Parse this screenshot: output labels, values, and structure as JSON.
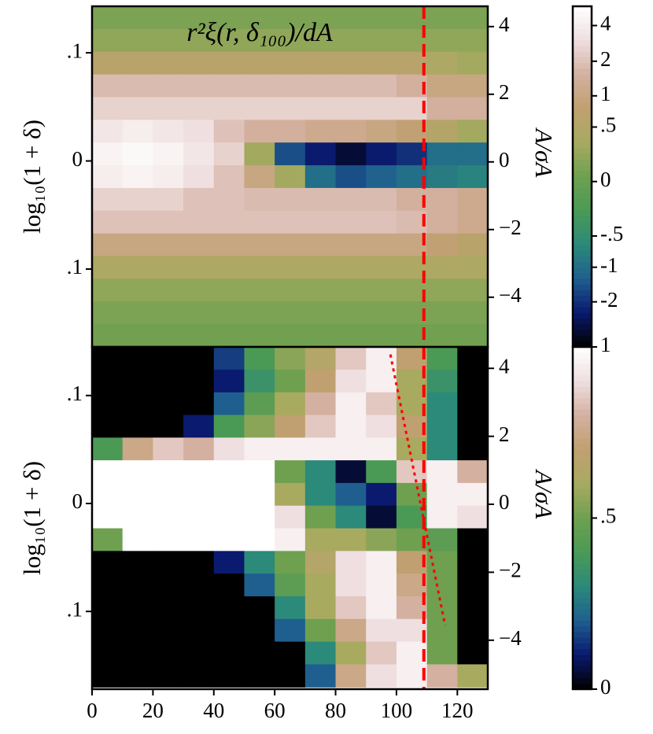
{
  "chart_data": [
    {
      "type": "heatmap",
      "title": "r²ξ(r, δ₁₀₀)/dA",
      "ylabel": "log₁₀(1 + δ)",
      "y2label": "A/σA",
      "xlim": [
        0,
        130
      ],
      "ylim": [
        -0.172,
        0.143
      ],
      "yticks": [
        {
          "value": 0.1,
          "label": ".1"
        },
        0,
        {
          "value": -0.1,
          "label": ".1"
        }
      ],
      "y2lim": [
        -5.47,
        4.6
      ],
      "y2ticks": [
        4,
        2,
        0,
        {
          "value": -2,
          "label": "−2"
        },
        {
          "value": -4,
          "label": "−4"
        }
      ],
      "xbins": [
        0,
        10,
        20,
        30,
        40,
        50,
        60,
        70,
        80,
        90,
        100,
        110,
        120,
        130
      ],
      "ybins": [
        0.143,
        0.122,
        0.101,
        0.08,
        0.059,
        0.038,
        0.017,
        -0.004,
        -0.025,
        -0.046,
        -0.067,
        -0.088,
        -0.109,
        -0.13,
        -0.151,
        -0.172
      ],
      "values": [
        [
          0.1,
          0.1,
          0.1,
          0.1,
          0.1,
          0.1,
          0.1,
          0.1,
          0.1,
          0.1,
          0.1,
          0.1,
          0.1
        ],
        [
          0.2,
          0.2,
          0.2,
          0.2,
          0.2,
          0.2,
          0.2,
          0.2,
          0.2,
          0.2,
          0.2,
          0.2,
          0.2
        ],
        [
          0.6,
          0.6,
          0.6,
          0.6,
          0.6,
          0.6,
          0.6,
          0.6,
          0.6,
          0.6,
          0.6,
          0.4,
          0.3
        ],
        [
          1.8,
          1.8,
          1.8,
          1.8,
          1.8,
          1.8,
          1.8,
          1.8,
          1.8,
          1.8,
          1.5,
          1,
          1
        ],
        [
          2.5,
          2.5,
          2.5,
          2.5,
          2.5,
          2.5,
          2.5,
          2.5,
          2.5,
          2.5,
          2.5,
          1.5,
          1.5
        ],
        [
          3.5,
          4,
          3.5,
          3,
          2,
          1.5,
          1.5,
          1.2,
          1.2,
          1,
          0.8,
          0.5,
          0.3
        ],
        [
          4.5,
          5,
          4.5,
          3.5,
          2.5,
          0.3,
          -1.5,
          -2.5,
          -3.5,
          -2.5,
          -2,
          -1,
          -1
        ],
        [
          4,
          4.5,
          4,
          3,
          2,
          1,
          0.3,
          -1,
          -1.5,
          -1.2,
          -1,
          -0.8,
          -0.7
        ],
        [
          2.5,
          2.5,
          2.5,
          2,
          2,
          1.8,
          1.8,
          1.8,
          1.8,
          1.8,
          1.5,
          1.5,
          1.2
        ],
        [
          2,
          2,
          2,
          2,
          2,
          2,
          2,
          2,
          2,
          2,
          1.8,
          1.5,
          1.2
        ],
        [
          1,
          1,
          1,
          1,
          1,
          1,
          1,
          1,
          1,
          1,
          1,
          0.8,
          0.6
        ],
        [
          0.4,
          0.4,
          0.4,
          0.4,
          0.4,
          0.4,
          0.4,
          0.4,
          0.4,
          0.4,
          0.4,
          0.4,
          0.4
        ],
        [
          0.2,
          0.2,
          0.2,
          0.2,
          0.2,
          0.2,
          0.2,
          0.2,
          0.2,
          0.2,
          0.2,
          0.2,
          0.2
        ],
        [
          0.1,
          0.1,
          0.1,
          0.1,
          0.1,
          0.1,
          0.1,
          0.1,
          0.1,
          0.1,
          0.1,
          0.1,
          0.1
        ],
        [
          0.05,
          0.05,
          0.05,
          0.05,
          0.05,
          0.05,
          0.05,
          0.05,
          0.05,
          0.05,
          0.05,
          0.05,
          0.05
        ]
      ],
      "colormap": [
        "#000000",
        "#0a1a6e",
        "#1f5f8f",
        "#2b8a7a",
        "#4a9a55",
        "#6ea050",
        "#a8aa60",
        "#c0a070",
        "#d4b0a0",
        "#efdfe0",
        "#ffffff"
      ],
      "colorbar": {
        "lim": [
          -4.8,
          5.8
        ],
        "norm": "asinh",
        "norm_scale": 0.4,
        "ticks": [
          4,
          2,
          1,
          {
            "value": 0.5,
            "label": ".5"
          },
          0,
          {
            "value": -0.5,
            "label": "-.5"
          },
          -1,
          -2
        ]
      },
      "vline": {
        "x": 109,
        "color": "#ff0000",
        "style": "dashed"
      }
    },
    {
      "type": "heatmap",
      "ylabel": "log₁₀(1 + δ)",
      "y2label": "A/σA",
      "xlim": [
        0,
        130
      ],
      "xticks": [
        0,
        20,
        40,
        60,
        80,
        100,
        120
      ],
      "ylim": [
        -0.172,
        0.145
      ],
      "yticks": [
        {
          "value": 0.1,
          "label": ".1"
        },
        0,
        {
          "value": -0.1,
          "label": ".1"
        }
      ],
      "y2lim": [
        -5.44,
        4.63
      ],
      "y2ticks": [
        4,
        2,
        0,
        {
          "value": -2,
          "label": "−2"
        },
        {
          "value": -4,
          "label": "−4"
        }
      ],
      "xbins": [
        0,
        10,
        20,
        30,
        40,
        50,
        60,
        70,
        80,
        90,
        100,
        110,
        120,
        130
      ],
      "ybins": [
        0.145,
        0.124,
        0.103,
        0.082,
        0.061,
        0.04,
        0.019,
        -0.002,
        -0.023,
        -0.044,
        -0.065,
        -0.086,
        -0.107,
        -0.128,
        -0.149,
        -0.17
      ],
      "values": [
        [
          0,
          0,
          0,
          0,
          0.15,
          0.4,
          0.55,
          0.65,
          0.85,
          0.95,
          0.7,
          0.4,
          0
        ],
        [
          0,
          0,
          0,
          0,
          0.1,
          0.35,
          0.5,
          0.7,
          0.9,
          0.95,
          0.6,
          0.35,
          0
        ],
        [
          0,
          0,
          0,
          0,
          0.2,
          0.45,
          0.6,
          0.8,
          0.95,
          0.85,
          0.6,
          0.3,
          0
        ],
        [
          0,
          0,
          0,
          0.1,
          0.4,
          0.55,
          0.7,
          0.85,
          0.95,
          0.9,
          0.7,
          0.3,
          0
        ],
        [
          0.4,
          0.75,
          0.85,
          0.8,
          0.9,
          0.95,
          0.95,
          0.95,
          0.95,
          0.95,
          0.6,
          0.3,
          0
        ],
        [
          1,
          1,
          1,
          1,
          1,
          1,
          0.5,
          0.3,
          0.05,
          0.4,
          0.85,
          0.95,
          0.8
        ],
        [
          1,
          1,
          1,
          1,
          1,
          1,
          0.6,
          0.3,
          0.2,
          0.1,
          0.5,
          0.95,
          0.95
        ],
        [
          1,
          1,
          1,
          1,
          1,
          1,
          0.9,
          0.5,
          0.3,
          0.05,
          0.4,
          0.95,
          0.9
        ],
        [
          0.5,
          1,
          1,
          1,
          1,
          1,
          0.95,
          0.6,
          0.6,
          0.55,
          0.5,
          0.45,
          0
        ],
        [
          0,
          0,
          0,
          0,
          0.1,
          0.3,
          0.5,
          0.65,
          0.9,
          0.95,
          0.7,
          0.5,
          0
        ],
        [
          0,
          0,
          0,
          0,
          0,
          0.2,
          0.45,
          0.6,
          0.9,
          0.95,
          0.75,
          0.5,
          0
        ],
        [
          0,
          0,
          0,
          0,
          0,
          0,
          0.3,
          0.6,
          0.85,
          0.95,
          0.8,
          0.5,
          0
        ],
        [
          0,
          0,
          0,
          0,
          0,
          0,
          0.2,
          0.5,
          0.75,
          0.9,
          0.9,
          0.5,
          0
        ],
        [
          0,
          0,
          0,
          0,
          0,
          0,
          0,
          0.3,
          0.6,
          0.85,
          0.95,
          0.5,
          0
        ],
        [
          0,
          0,
          0,
          0,
          0,
          0,
          0,
          0.2,
          0.75,
          0.9,
          0.95,
          0.8,
          0.6
        ]
      ],
      "colormap": [
        "#000000",
        "#0a1a6e",
        "#1f5f8f",
        "#2b8a7a",
        "#4a9a55",
        "#6ea050",
        "#a8aa60",
        "#c0a070",
        "#d4b0a0",
        "#efdfe0",
        "#ffffff"
      ],
      "colorbar": {
        "lim": [
          0,
          1
        ],
        "norm": "linear",
        "ticks": [
          1,
          {
            "value": 0.5,
            "label": ".5"
          },
          0
        ]
      },
      "vline": {
        "x": 109,
        "color": "#ff0000",
        "style": "dashed"
      },
      "line": {
        "x": [
          98,
          116
        ],
        "y": [
          0.138,
          -0.113
        ],
        "color": "#ff0000",
        "style": "dotted"
      }
    }
  ]
}
